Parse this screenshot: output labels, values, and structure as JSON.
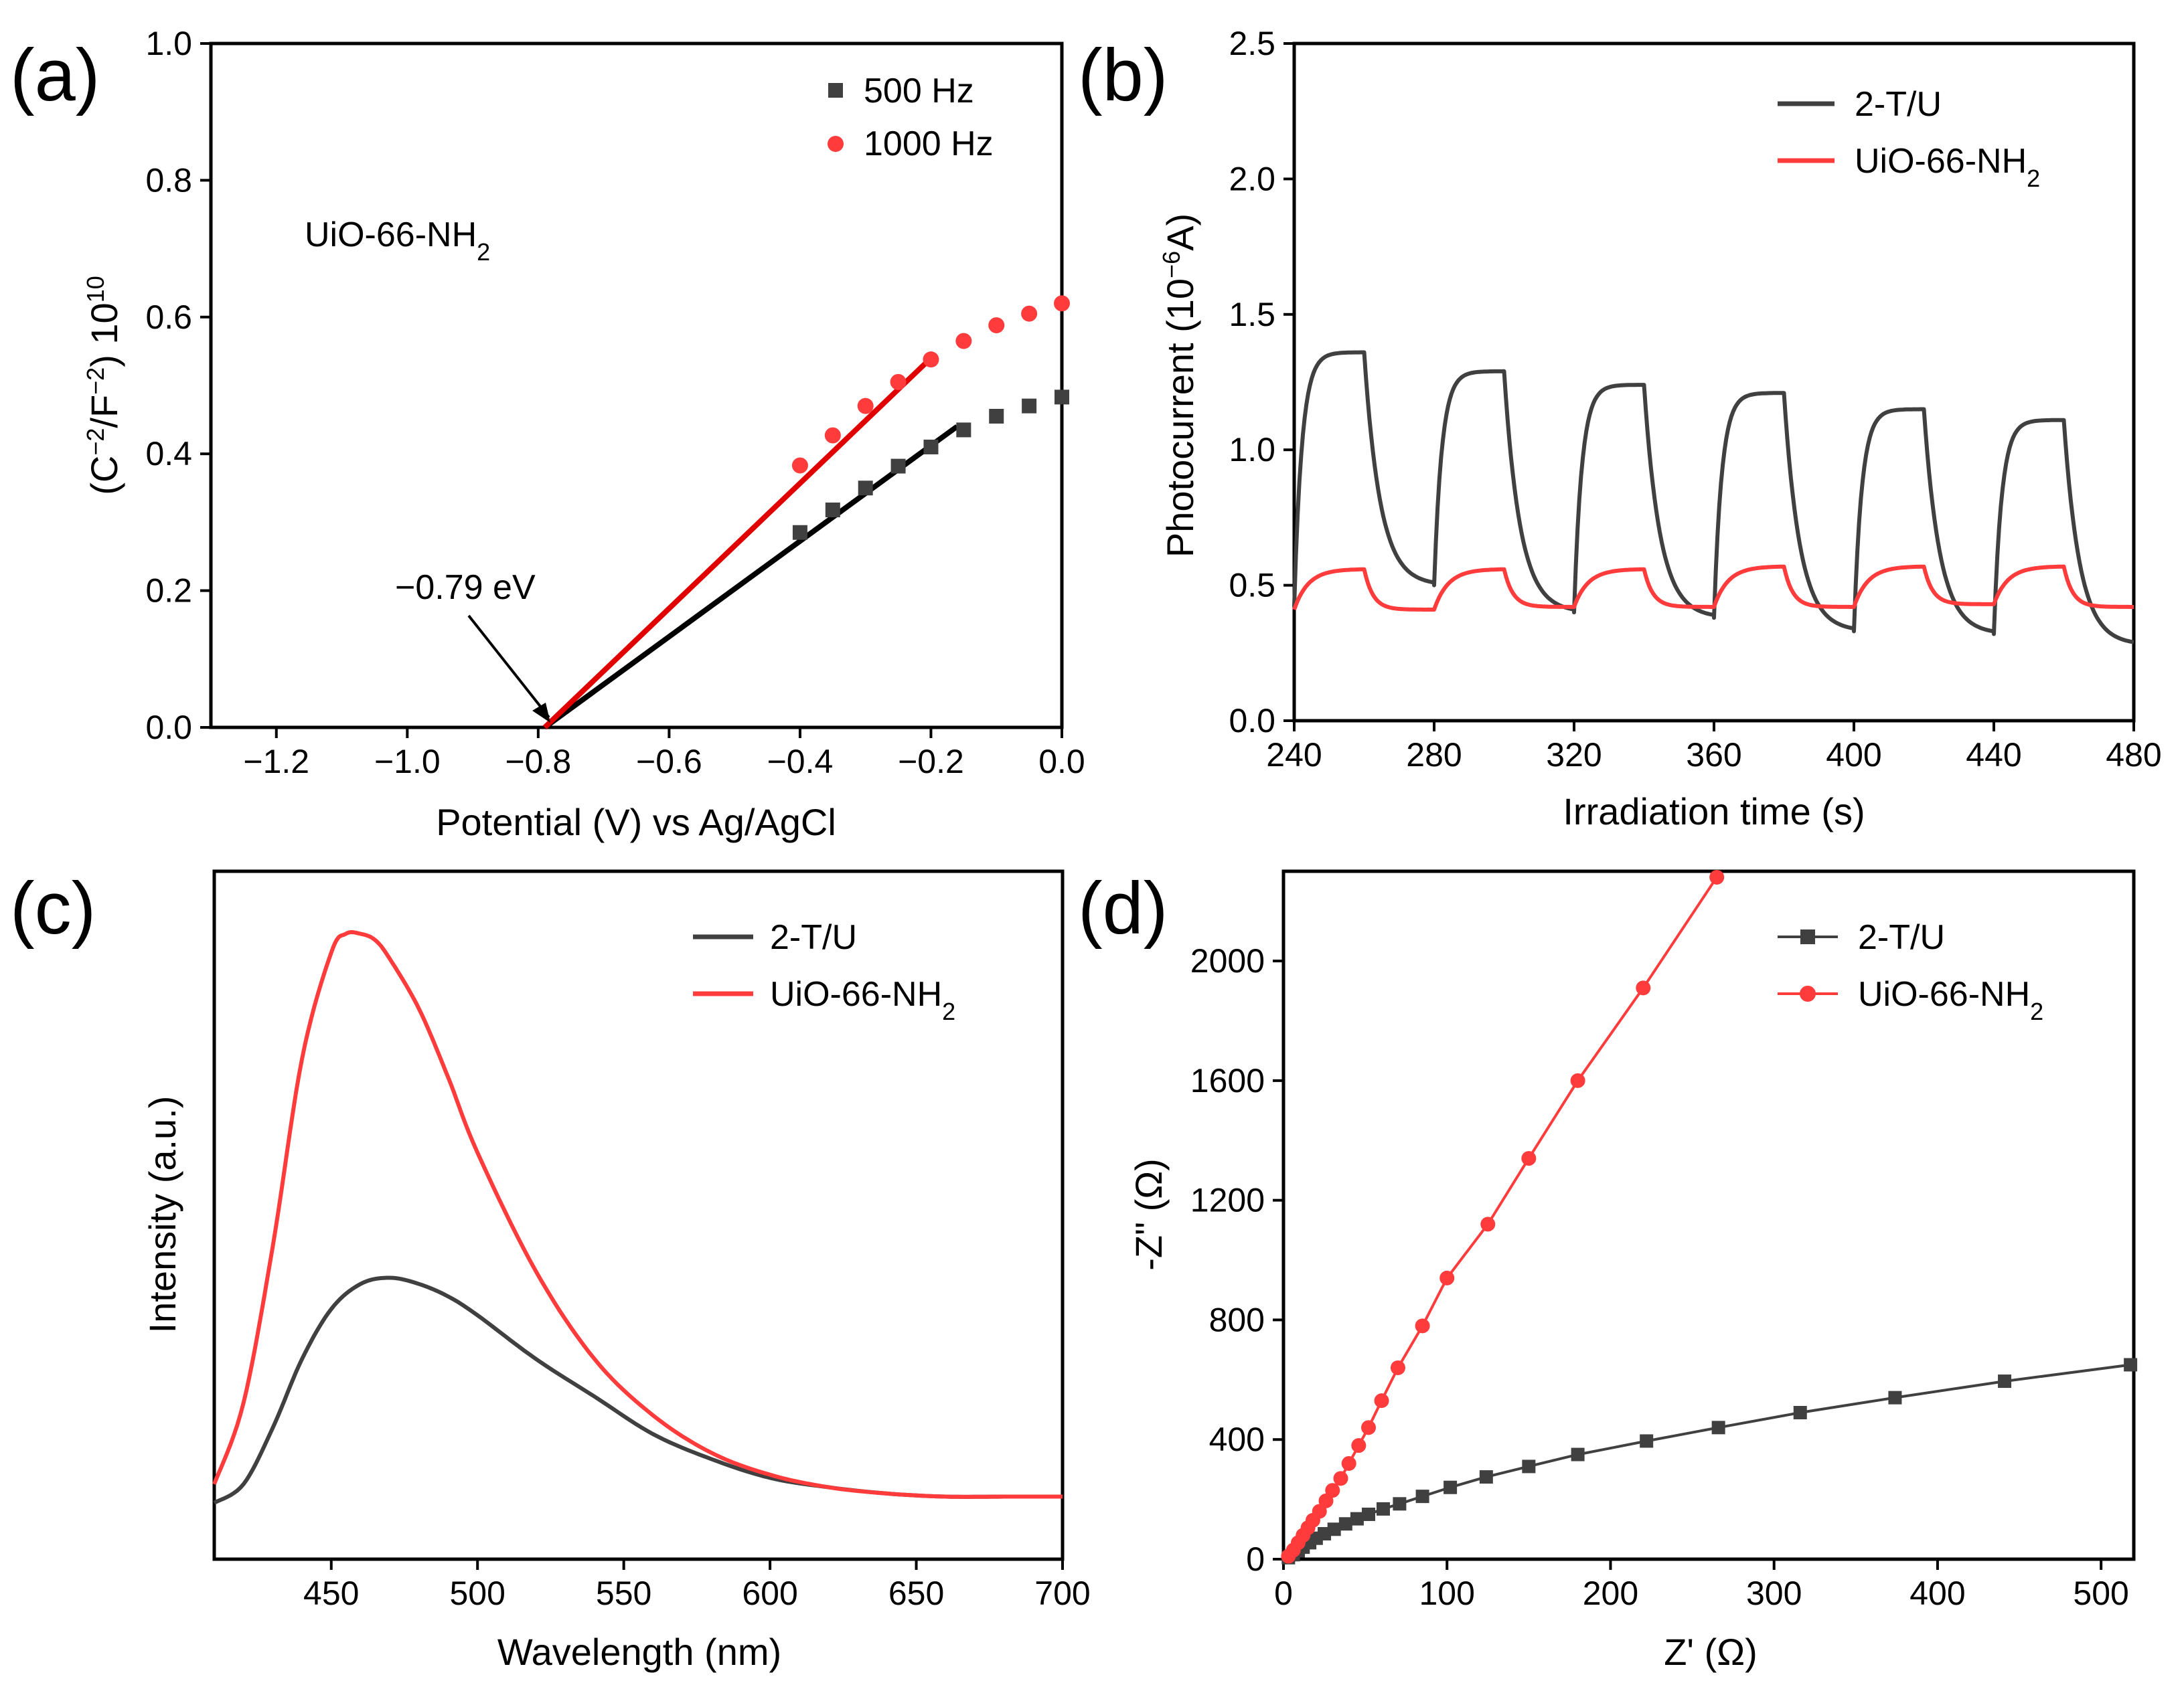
{
  "colors": {
    "black": "#000000",
    "dark_gray": "#404040",
    "red": "#ff3b3b",
    "fit_red": "#e00000"
  },
  "chart_data": [
    {
      "panel_label": "(a)",
      "type": "scatter",
      "xlabel": "Potential (V) vs Ag/AgCl",
      "ylabel_main": "(C",
      "ylabel_sup1": "−2",
      "ylabel_mid": "/F",
      "ylabel_sup2": "−2",
      "ylabel_end": ") 10",
      "ylabel_sup3": "10",
      "xlim": [
        -1.3,
        0.0
      ],
      "ylim": [
        0.0,
        1.0
      ],
      "x_ticks": [
        -1.2,
        -1.0,
        -0.8,
        -0.6,
        -0.4,
        -0.2,
        0.0
      ],
      "x_tick_labels": [
        "−1.2",
        "−1.0",
        "−0.8",
        "−0.6",
        "−0.4",
        "−0.2",
        "0.0"
      ],
      "y_ticks": [
        0.0,
        0.2,
        0.4,
        0.6,
        0.8,
        1.0
      ],
      "y_tick_labels": [
        "0.0",
        "0.2",
        "0.4",
        "0.6",
        "0.8",
        "1.0"
      ],
      "annotation_sample": "UiO-66-NH",
      "annotation_sample_sub": "2",
      "annotation_intercept": "−0.79 eV",
      "intercept_x": -0.79,
      "series": [
        {
          "name": "500 Hz",
          "color": "#404040",
          "marker": "square",
          "x": [
            -0.4,
            -0.35,
            -0.3,
            -0.25,
            -0.2,
            -0.15,
            -0.1,
            -0.05,
            0.0
          ],
          "y": [
            0.285,
            0.318,
            0.35,
            0.382,
            0.41,
            0.435,
            0.455,
            0.47,
            0.483
          ],
          "fit": {
            "x": [
              -0.79,
              -0.16
            ],
            "y": [
              0.0,
              0.44
            ],
            "color": "#000000"
          }
        },
        {
          "name": "1000 Hz",
          "color": "#ff3b3b",
          "marker": "circle",
          "x": [
            -0.4,
            -0.35,
            -0.3,
            -0.25,
            -0.2,
            -0.15,
            -0.1,
            -0.05,
            0.0
          ],
          "y": [
            0.383,
            0.427,
            0.47,
            0.505,
            0.538,
            0.565,
            0.588,
            0.605,
            0.62
          ],
          "fit": {
            "x": [
              -0.79,
              -0.2
            ],
            "y": [
              0.0,
              0.54
            ],
            "color": "#e00000"
          }
        }
      ]
    },
    {
      "panel_label": "(b)",
      "type": "line",
      "xlabel": "Irradiation time (s)",
      "ylabel_main": "Photocurrent (10",
      "ylabel_sup": "−6",
      "ylabel_end": "A)",
      "xlim": [
        240,
        480
      ],
      "ylim": [
        0.0,
        2.5
      ],
      "x_ticks": [
        240,
        280,
        320,
        360,
        400,
        440,
        480
      ],
      "x_tick_labels": [
        "240",
        "280",
        "320",
        "360",
        "400",
        "440",
        "480"
      ],
      "y_ticks": [
        0.0,
        0.5,
        1.0,
        1.5,
        2.0,
        2.5
      ],
      "y_tick_labels": [
        "0.0",
        "0.5",
        "1.0",
        "1.5",
        "2.0",
        "2.5"
      ],
      "on_period_s": 20,
      "off_period_s": 20,
      "series": [
        {
          "name": "2-T/U",
          "color": "#404040",
          "on_starts": [
            240,
            280,
            320,
            360,
            400,
            440
          ],
          "baselines": [
            0.42,
            0.5,
            0.4,
            0.38,
            0.33,
            0.32
          ],
          "plateaus": [
            1.36,
            1.29,
            1.24,
            1.21,
            1.15,
            1.11
          ],
          "end_value": 0.28
        },
        {
          "name": "UiO-66-NH",
          "name_sub": "2",
          "color": "#ff3b3b",
          "on_starts": [
            240,
            280,
            320,
            360,
            400,
            440
          ],
          "baselines": [
            0.41,
            0.41,
            0.42,
            0.42,
            0.42,
            0.43
          ],
          "plateaus": [
            0.56,
            0.56,
            0.56,
            0.57,
            0.57,
            0.57
          ],
          "end_value": 0.42
        }
      ]
    },
    {
      "panel_label": "(c)",
      "type": "line",
      "xlabel": "Wavelength (nm)",
      "ylabel": "Intensity (a.u.)",
      "xlim": [
        410,
        700
      ],
      "ylim": [
        0,
        1.1
      ],
      "x_ticks": [
        450,
        500,
        550,
        600,
        650,
        700
      ],
      "x_tick_labels": [
        "450",
        "500",
        "550",
        "600",
        "650",
        "700"
      ],
      "series": [
        {
          "name": "2-T/U",
          "color": "#404040",
          "x": [
            410,
            420,
            430,
            440,
            450,
            460,
            470,
            480,
            490,
            500,
            520,
            540,
            560,
            580,
            600,
            620,
            640,
            660,
            680,
            700
          ],
          "y": [
            0.09,
            0.12,
            0.21,
            0.32,
            0.4,
            0.44,
            0.45,
            0.44,
            0.42,
            0.39,
            0.32,
            0.26,
            0.2,
            0.16,
            0.13,
            0.115,
            0.105,
            0.1,
            0.1,
            0.1
          ]
        },
        {
          "name": "UiO-66-NH",
          "name_sub": "2",
          "color": "#ff3b3b",
          "x": [
            410,
            420,
            430,
            440,
            450,
            455,
            460,
            465,
            470,
            480,
            490,
            500,
            520,
            540,
            560,
            580,
            600,
            620,
            640,
            660,
            680,
            700
          ],
          "y": [
            0.12,
            0.25,
            0.5,
            0.8,
            0.97,
            1.0,
            1.0,
            0.99,
            0.96,
            0.88,
            0.77,
            0.65,
            0.46,
            0.32,
            0.23,
            0.17,
            0.135,
            0.115,
            0.105,
            0.1,
            0.1,
            0.1
          ]
        }
      ]
    },
    {
      "panel_label": "(d)",
      "type": "line",
      "xlabel": "Z' (Ω)",
      "ylabel": "-Z\" (Ω)",
      "xlim": [
        0,
        520
      ],
      "ylim": [
        0,
        2300
      ],
      "x_ticks": [
        0,
        100,
        200,
        300,
        400,
        500
      ],
      "x_tick_labels": [
        "0",
        "100",
        "200",
        "300",
        "400",
        "500"
      ],
      "y_ticks": [
        0,
        400,
        800,
        1200,
        1600,
        2000
      ],
      "y_tick_labels": [
        "0",
        "400",
        "800",
        "1200",
        "1600",
        "2000"
      ],
      "series": [
        {
          "name": "2-T/U",
          "color": "#404040",
          "marker": "square",
          "x": [
            3,
            6,
            9,
            12,
            16,
            20,
            25,
            31,
            38,
            45,
            52,
            61,
            71,
            85,
            102,
            124,
            150,
            180,
            222,
            266,
            316,
            374,
            441,
            518
          ],
          "y": [
            5,
            15,
            28,
            40,
            55,
            70,
            85,
            100,
            118,
            135,
            150,
            168,
            185,
            210,
            240,
            275,
            310,
            350,
            395,
            440,
            490,
            540,
            595,
            650
          ]
        },
        {
          "name": "UiO-66-NH",
          "name_sub": "2",
          "color": "#ff3b3b",
          "marker": "circle",
          "x": [
            3,
            6,
            9,
            12,
            15,
            18,
            22,
            26,
            30,
            35,
            40,
            46,
            52,
            60,
            70,
            85,
            100,
            125,
            150,
            180,
            220,
            265
          ],
          "y": [
            10,
            30,
            55,
            80,
            105,
            130,
            160,
            195,
            230,
            270,
            320,
            380,
            440,
            530,
            640,
            780,
            940,
            1120,
            1340,
            1600,
            1910,
            2280
          ]
        }
      ]
    }
  ]
}
